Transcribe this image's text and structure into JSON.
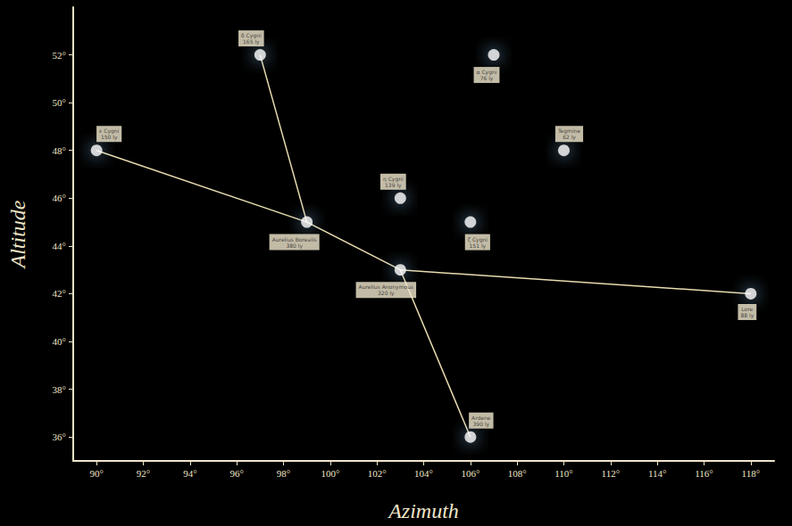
{
  "chart_data": {
    "type": "scatter",
    "xlabel": "Azimuth",
    "ylabel": "Altitude",
    "xlim": [
      89,
      119
    ],
    "ylim": [
      35,
      54
    ],
    "xticks": [
      {
        "value": 90,
        "label": "90°"
      },
      {
        "value": 92,
        "label": "92°"
      },
      {
        "value": 94,
        "label": "94°"
      },
      {
        "value": 96,
        "label": "96°"
      },
      {
        "value": 98,
        "label": "98°"
      },
      {
        "value": 100,
        "label": "100°"
      },
      {
        "value": 102,
        "label": "102°"
      },
      {
        "value": 104,
        "label": "104°"
      },
      {
        "value": 106,
        "label": "106°"
      },
      {
        "value": 108,
        "label": "108°"
      },
      {
        "value": 110,
        "label": "110°"
      },
      {
        "value": 112,
        "label": "112°"
      },
      {
        "value": 114,
        "label": "114°"
      },
      {
        "value": 116,
        "label": "116°"
      },
      {
        "value": 118,
        "label": "118°"
      }
    ],
    "yticks": [
      {
        "value": 36,
        "label": "36°"
      },
      {
        "value": 38,
        "label": "38°"
      },
      {
        "value": 40,
        "label": "40°"
      },
      {
        "value": 42,
        "label": "42°"
      },
      {
        "value": 44,
        "label": "44°"
      },
      {
        "value": 46,
        "label": "46°"
      },
      {
        "value": 48,
        "label": "48°"
      },
      {
        "value": 50,
        "label": "50°"
      },
      {
        "value": 52,
        "label": "52°"
      }
    ],
    "grid": false,
    "color": "#ffffff",
    "marker": "circle",
    "points": [
      {
        "x": 90,
        "y": 48,
        "name": "ε Cygni",
        "distance": "150 ly"
      },
      {
        "x": 97,
        "y": 52,
        "name": "δ Cygni",
        "distance": "165 ly"
      },
      {
        "x": 107,
        "y": 52,
        "name": "α Cygni",
        "distance": "76 ly"
      },
      {
        "x": 110,
        "y": 48,
        "name": "Tegmine",
        "distance": "62 ly"
      },
      {
        "x": 103,
        "y": 46,
        "name": "η Cygni",
        "distance": "139 ly"
      },
      {
        "x": 106,
        "y": 45,
        "name": "ζ Cygni",
        "distance": "151 ly"
      },
      {
        "x": 99,
        "y": 45,
        "name": "Aurelius Borealis",
        "distance": "380 ly"
      },
      {
        "x": 103,
        "y": 43,
        "name": "Aurelius Anonymous",
        "distance": "320 ly"
      },
      {
        "x": 118,
        "y": 42,
        "name": "Lore",
        "distance": "88 ly"
      },
      {
        "x": 106,
        "y": 36,
        "name": "Ardene",
        "distance": "390 ly"
      }
    ],
    "lines": [
      [
        [
          90,
          48
        ],
        [
          99,
          45
        ],
        [
          103,
          43
        ],
        [
          118,
          42
        ]
      ],
      [
        [
          97,
          52
        ],
        [
          99,
          45
        ]
      ],
      [
        [
          103,
          43
        ],
        [
          106,
          36
        ]
      ]
    ],
    "line_color": "#e8dcb0"
  }
}
